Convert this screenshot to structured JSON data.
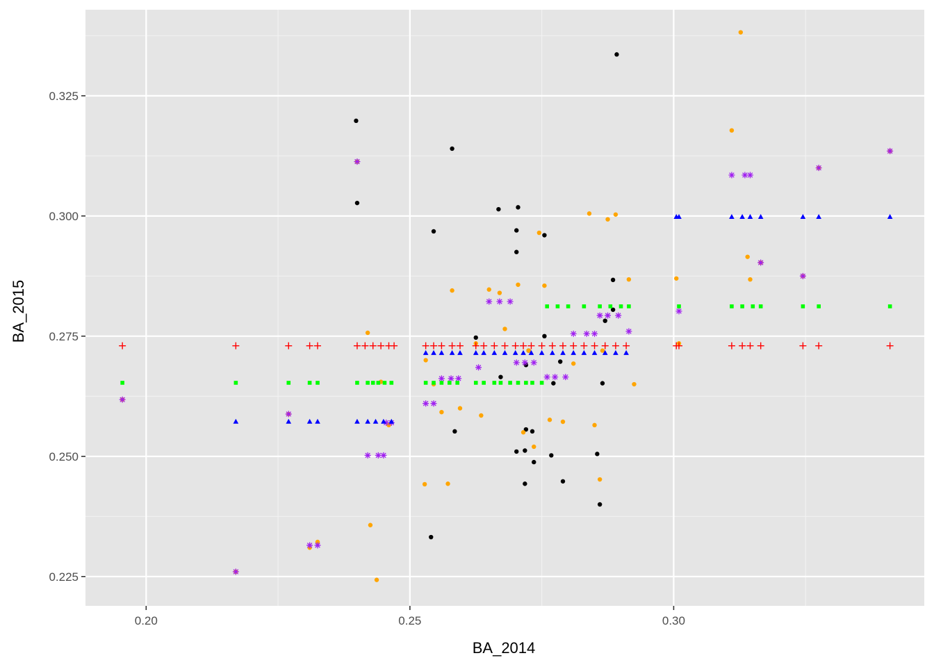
{
  "chart_data": {
    "type": "scatter",
    "xlabel": "BA_2014",
    "ylabel": "BA_2015",
    "xlim": [
      0.1885,
      0.3475
    ],
    "ylim": [
      0.2189,
      0.3429
    ],
    "x_ticks": [
      0.2,
      0.25,
      0.3
    ],
    "x_tick_labels": [
      "0.20",
      "0.25",
      "0.30"
    ],
    "y_ticks": [
      0.225,
      0.25,
      0.275,
      0.3,
      0.325
    ],
    "y_tick_labels": [
      "0.225",
      "0.250",
      "0.275",
      "0.300",
      "0.325"
    ],
    "grid": true,
    "legend": "none",
    "colors": {
      "panel": "#e5e5e5",
      "grid_major": "#ffffff",
      "grid_minor": "#f2f2f2"
    },
    "series": [
      {
        "marker": "circle",
        "color": "#000000",
        "points": [
          [
            0.2398,
            0.3198
          ],
          [
            0.24,
            0.3027
          ],
          [
            0.24,
            0.3113
          ],
          [
            0.254,
            0.2332
          ],
          [
            0.2545,
            0.2968
          ],
          [
            0.258,
            0.314
          ],
          [
            0.2585,
            0.2552
          ],
          [
            0.2625,
            0.2747
          ],
          [
            0.2668,
            0.3014
          ],
          [
            0.2672,
            0.2665
          ],
          [
            0.2702,
            0.297
          ],
          [
            0.2702,
            0.2925
          ],
          [
            0.2705,
            0.3018
          ],
          [
            0.2702,
            0.251
          ],
          [
            0.2718,
            0.2512
          ],
          [
            0.272,
            0.2556
          ],
          [
            0.2718,
            0.2443
          ],
          [
            0.2725,
            0.272
          ],
          [
            0.2732,
            0.2552
          ],
          [
            0.2735,
            0.2488
          ],
          [
            0.2755,
            0.296
          ],
          [
            0.2755,
            0.275
          ],
          [
            0.2768,
            0.2502
          ],
          [
            0.2772,
            0.2652
          ],
          [
            0.2785,
            0.2697
          ],
          [
            0.279,
            0.2448
          ],
          [
            0.2855,
            0.2505
          ],
          [
            0.286,
            0.24
          ],
          [
            0.2865,
            0.2652
          ],
          [
            0.287,
            0.2782
          ],
          [
            0.2885,
            0.2867
          ],
          [
            0.2885,
            0.2805
          ],
          [
            0.2892,
            0.3336
          ],
          [
            0.272,
            0.269
          ]
        ]
      },
      {
        "marker": "circle",
        "color": "#ffa500",
        "points": [
          [
            0.1955,
            0.2618
          ],
          [
            0.217,
            0.226
          ],
          [
            0.227,
            0.2588
          ],
          [
            0.231,
            0.231
          ],
          [
            0.2325,
            0.2322
          ],
          [
            0.24,
            0.3113
          ],
          [
            0.242,
            0.2757
          ],
          [
            0.2425,
            0.2357
          ],
          [
            0.2437,
            0.2243
          ],
          [
            0.2445,
            0.2655
          ],
          [
            0.246,
            0.2565
          ],
          [
            0.2528,
            0.2442
          ],
          [
            0.253,
            0.27
          ],
          [
            0.2545,
            0.265
          ],
          [
            0.256,
            0.2592
          ],
          [
            0.2572,
            0.2443
          ],
          [
            0.258,
            0.2845
          ],
          [
            0.2595,
            0.26
          ],
          [
            0.2625,
            0.2735
          ],
          [
            0.2635,
            0.2585
          ],
          [
            0.265,
            0.2847
          ],
          [
            0.267,
            0.284
          ],
          [
            0.268,
            0.2765
          ],
          [
            0.2705,
            0.2857
          ],
          [
            0.2715,
            0.255
          ],
          [
            0.2725,
            0.272
          ],
          [
            0.2735,
            0.252
          ],
          [
            0.2745,
            0.2965
          ],
          [
            0.2755,
            0.2855
          ],
          [
            0.2765,
            0.2576
          ],
          [
            0.279,
            0.2572
          ],
          [
            0.281,
            0.2693
          ],
          [
            0.284,
            0.3005
          ],
          [
            0.285,
            0.2565
          ],
          [
            0.286,
            0.2452
          ],
          [
            0.2865,
            0.272
          ],
          [
            0.2875,
            0.2993
          ],
          [
            0.289,
            0.3003
          ],
          [
            0.2915,
            0.2868
          ],
          [
            0.2925,
            0.265
          ],
          [
            0.3005,
            0.287
          ],
          [
            0.301,
            0.2735
          ],
          [
            0.311,
            0.3178
          ],
          [
            0.3127,
            0.3382
          ],
          [
            0.314,
            0.2915
          ],
          [
            0.3145,
            0.2868
          ],
          [
            0.3165,
            0.2903
          ],
          [
            0.3245,
            0.2875
          ],
          [
            0.3275,
            0.31
          ],
          [
            0.341,
            0.3135
          ]
        ]
      },
      {
        "marker": "asterisk",
        "color": "#a020f0",
        "points": [
          [
            0.1955,
            0.2618
          ],
          [
            0.217,
            0.226
          ],
          [
            0.227,
            0.2588
          ],
          [
            0.231,
            0.2315
          ],
          [
            0.2325,
            0.2315
          ],
          [
            0.24,
            0.3113
          ],
          [
            0.242,
            0.2502
          ],
          [
            0.244,
            0.2502
          ],
          [
            0.245,
            0.2502
          ],
          [
            0.2455,
            0.257
          ],
          [
            0.2465,
            0.257
          ],
          [
            0.253,
            0.261
          ],
          [
            0.2545,
            0.261
          ],
          [
            0.256,
            0.2662
          ],
          [
            0.2578,
            0.2662
          ],
          [
            0.2592,
            0.2662
          ],
          [
            0.263,
            0.2685
          ],
          [
            0.265,
            0.2822
          ],
          [
            0.267,
            0.2822
          ],
          [
            0.269,
            0.2822
          ],
          [
            0.2702,
            0.2695
          ],
          [
            0.2718,
            0.2695
          ],
          [
            0.2735,
            0.2695
          ],
          [
            0.276,
            0.2665
          ],
          [
            0.2775,
            0.2665
          ],
          [
            0.2795,
            0.2665
          ],
          [
            0.281,
            0.2755
          ],
          [
            0.2835,
            0.2755
          ],
          [
            0.285,
            0.2755
          ],
          [
            0.286,
            0.2793
          ],
          [
            0.2875,
            0.2793
          ],
          [
            0.2895,
            0.2793
          ],
          [
            0.2915,
            0.276
          ],
          [
            0.301,
            0.2802
          ],
          [
            0.311,
            0.3085
          ],
          [
            0.3135,
            0.3085
          ],
          [
            0.3145,
            0.3085
          ],
          [
            0.3165,
            0.2903
          ],
          [
            0.3245,
            0.2875
          ],
          [
            0.3275,
            0.31
          ],
          [
            0.341,
            0.3135
          ]
        ]
      },
      {
        "marker": "square",
        "color": "#00ff00",
        "points": [
          [
            0.1955,
            0.2653
          ],
          [
            0.217,
            0.2653
          ],
          [
            0.227,
            0.2653
          ],
          [
            0.231,
            0.2653
          ],
          [
            0.2325,
            0.2653
          ],
          [
            0.24,
            0.2653
          ],
          [
            0.242,
            0.2653
          ],
          [
            0.243,
            0.2653
          ],
          [
            0.244,
            0.2653
          ],
          [
            0.2452,
            0.2653
          ],
          [
            0.2465,
            0.2653
          ],
          [
            0.253,
            0.2653
          ],
          [
            0.2545,
            0.2653
          ],
          [
            0.256,
            0.2653
          ],
          [
            0.2575,
            0.2653
          ],
          [
            0.259,
            0.2653
          ],
          [
            0.2625,
            0.2653
          ],
          [
            0.264,
            0.2653
          ],
          [
            0.266,
            0.2653
          ],
          [
            0.2672,
            0.2653
          ],
          [
            0.269,
            0.2653
          ],
          [
            0.2705,
            0.2653
          ],
          [
            0.272,
            0.2653
          ],
          [
            0.2732,
            0.2653
          ],
          [
            0.275,
            0.2653
          ],
          [
            0.276,
            0.2812
          ],
          [
            0.278,
            0.2812
          ],
          [
            0.28,
            0.2812
          ],
          [
            0.283,
            0.2812
          ],
          [
            0.286,
            0.2812
          ],
          [
            0.288,
            0.2812
          ],
          [
            0.29,
            0.2812
          ],
          [
            0.2915,
            0.2812
          ],
          [
            0.301,
            0.2812
          ],
          [
            0.311,
            0.2812
          ],
          [
            0.313,
            0.2812
          ],
          [
            0.315,
            0.2812
          ],
          [
            0.3165,
            0.2812
          ],
          [
            0.3245,
            0.2812
          ],
          [
            0.3275,
            0.2812
          ],
          [
            0.341,
            0.2812
          ]
        ]
      },
      {
        "marker": "triangle",
        "color": "#0000ff",
        "points": [
          [
            0.217,
            0.2572
          ],
          [
            0.227,
            0.2572
          ],
          [
            0.231,
            0.2572
          ],
          [
            0.2325,
            0.2572
          ],
          [
            0.24,
            0.2572
          ],
          [
            0.242,
            0.2572
          ],
          [
            0.2435,
            0.2572
          ],
          [
            0.245,
            0.2572
          ],
          [
            0.2465,
            0.2572
          ],
          [
            0.253,
            0.2715
          ],
          [
            0.2545,
            0.2715
          ],
          [
            0.256,
            0.2715
          ],
          [
            0.258,
            0.2715
          ],
          [
            0.2595,
            0.2715
          ],
          [
            0.2625,
            0.2715
          ],
          [
            0.264,
            0.2715
          ],
          [
            0.266,
            0.2715
          ],
          [
            0.268,
            0.2715
          ],
          [
            0.27,
            0.2715
          ],
          [
            0.2715,
            0.2715
          ],
          [
            0.273,
            0.2715
          ],
          [
            0.275,
            0.2715
          ],
          [
            0.277,
            0.2715
          ],
          [
            0.279,
            0.2715
          ],
          [
            0.281,
            0.2715
          ],
          [
            0.283,
            0.2715
          ],
          [
            0.285,
            0.2715
          ],
          [
            0.287,
            0.2715
          ],
          [
            0.289,
            0.2715
          ],
          [
            0.291,
            0.2715
          ],
          [
            0.3005,
            0.2998
          ],
          [
            0.301,
            0.2998
          ],
          [
            0.311,
            0.2998
          ],
          [
            0.313,
            0.2998
          ],
          [
            0.3145,
            0.2998
          ],
          [
            0.3165,
            0.2998
          ],
          [
            0.3245,
            0.2998
          ],
          [
            0.3275,
            0.2998
          ],
          [
            0.341,
            0.2998
          ]
        ]
      },
      {
        "marker": "plus",
        "color": "#ff0000",
        "points": [
          [
            0.1955,
            0.273
          ],
          [
            0.217,
            0.273
          ],
          [
            0.227,
            0.273
          ],
          [
            0.231,
            0.273
          ],
          [
            0.2325,
            0.273
          ],
          [
            0.24,
            0.273
          ],
          [
            0.2415,
            0.273
          ],
          [
            0.243,
            0.273
          ],
          [
            0.2445,
            0.273
          ],
          [
            0.246,
            0.273
          ],
          [
            0.247,
            0.273
          ],
          [
            0.253,
            0.273
          ],
          [
            0.2545,
            0.273
          ],
          [
            0.256,
            0.273
          ],
          [
            0.258,
            0.273
          ],
          [
            0.2595,
            0.273
          ],
          [
            0.2625,
            0.273
          ],
          [
            0.264,
            0.273
          ],
          [
            0.266,
            0.273
          ],
          [
            0.268,
            0.273
          ],
          [
            0.27,
            0.273
          ],
          [
            0.2715,
            0.273
          ],
          [
            0.273,
            0.273
          ],
          [
            0.275,
            0.273
          ],
          [
            0.277,
            0.273
          ],
          [
            0.279,
            0.273
          ],
          [
            0.281,
            0.273
          ],
          [
            0.283,
            0.273
          ],
          [
            0.285,
            0.273
          ],
          [
            0.287,
            0.273
          ],
          [
            0.289,
            0.273
          ],
          [
            0.291,
            0.273
          ],
          [
            0.3005,
            0.273
          ],
          [
            0.301,
            0.273
          ],
          [
            0.311,
            0.273
          ],
          [
            0.313,
            0.273
          ],
          [
            0.3145,
            0.273
          ],
          [
            0.3165,
            0.273
          ],
          [
            0.3245,
            0.273
          ],
          [
            0.3275,
            0.273
          ],
          [
            0.341,
            0.273
          ]
        ]
      }
    ]
  }
}
